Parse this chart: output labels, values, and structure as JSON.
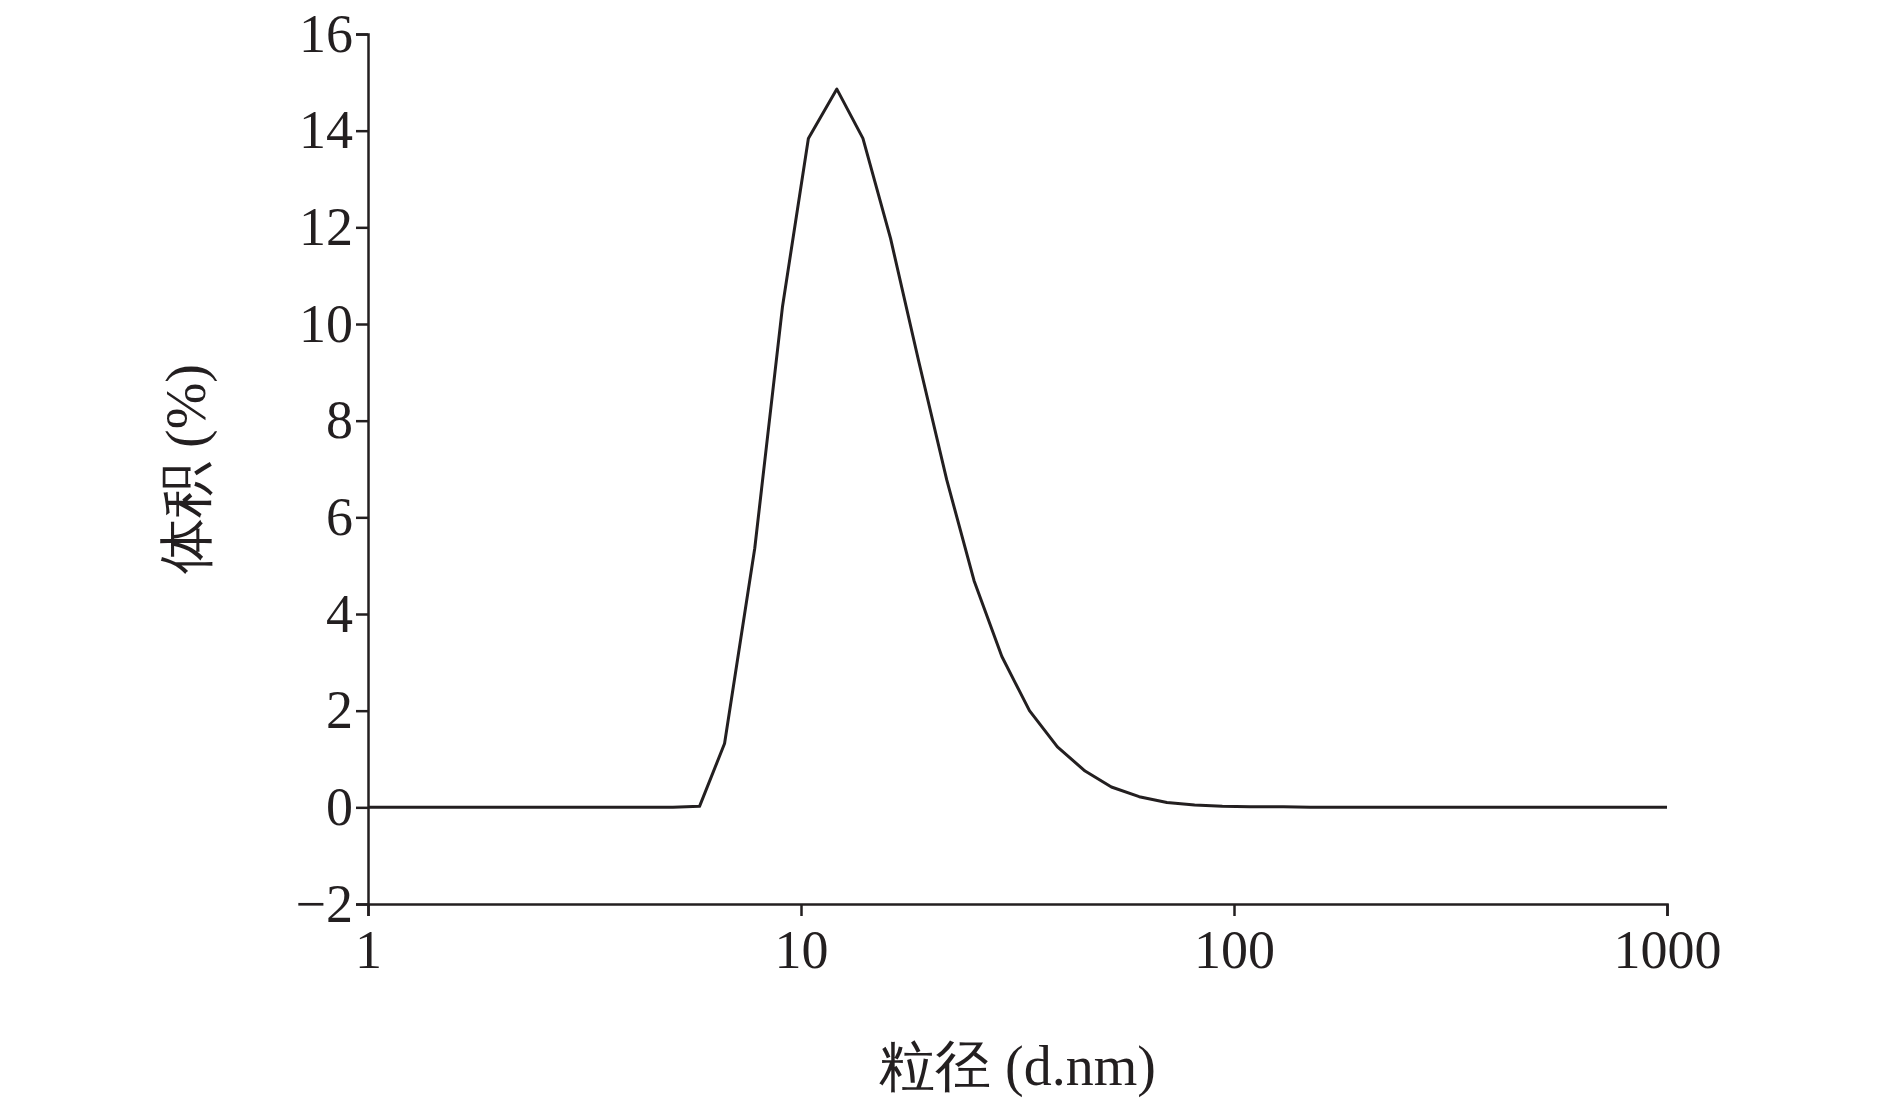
{
  "chart_data": {
    "type": "line",
    "xlabel": "粒径 (d.nm)",
    "ylabel": "体积 (%)",
    "log": "x",
    "xlim": [
      1,
      1000
    ],
    "xticks": [
      1,
      10,
      100,
      1000
    ],
    "ylim": [
      -2,
      16
    ],
    "yticks": [
      {
        "value": -2,
        "label": "−2"
      },
      0,
      2,
      4,
      6,
      8,
      10,
      12,
      14,
      16
    ],
    "grid": false,
    "marker": "none",
    "line_style": "solid",
    "series": [
      {
        "color": "#231f20",
        "x": [
          1,
          5.06,
          5.83,
          6.66,
          7.82,
          9.06,
          10.4,
          12.1,
          13.9,
          16.1,
          18.7,
          21.7,
          25.1,
          29.1,
          33.7,
          39.1,
          45.3,
          52.1,
          60.4,
          70.0,
          81.1,
          94.0,
          108.9,
          130,
          150,
          1000
        ],
        "values": [
          0,
          0,
          0.02,
          1.32,
          5.36,
          10.35,
          13.84,
          14.86,
          13.84,
          11.77,
          9.23,
          6.78,
          4.69,
          3.12,
          2.0,
          1.25,
          0.75,
          0.42,
          0.22,
          0.1,
          0.05,
          0.02,
          0.01,
          0.01,
          0,
          0
        ]
      }
    ]
  }
}
